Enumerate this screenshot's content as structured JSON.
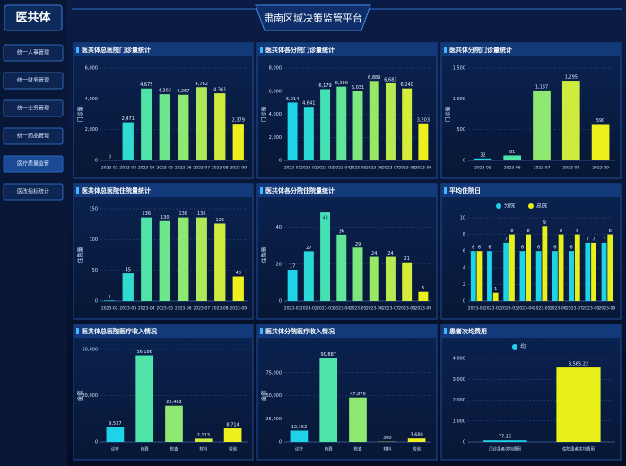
{
  "header": {
    "title": "肃南区域决策监管平台"
  },
  "sidebar": {
    "title": "医共体",
    "items": [
      "统一人事管理",
      "统一财务管理",
      "统一业务管理",
      "统一药品管理",
      "医疗质量监管",
      "医改指标统计"
    ],
    "active": 4
  },
  "chart_data": [
    {
      "type": "bar",
      "title": "医共体总医院门诊量统计",
      "ylabel": "门诊量",
      "categories": [
        "2023-02",
        "2023-03",
        "2023-04",
        "2023-05",
        "2023-06",
        "2023-07",
        "2023-08",
        "2023-09"
      ],
      "series": [
        {
          "colors": [
            "#1ed3e8",
            "#2fdcd0",
            "#4fe3a8",
            "#6ee68c",
            "#8ee872",
            "#aee95a",
            "#cfec3e",
            "#eef01e"
          ],
          "values": [
            0,
            2471,
            4675,
            4303,
            4267,
            4762,
            4361,
            2379
          ],
          "value_labels": [
            "0",
            "2,471",
            "4,675",
            "4,303",
            "4,267",
            "4,762",
            "4,361",
            "2,379"
          ]
        }
      ],
      "ylim": [
        0,
        6000
      ],
      "yticks": [
        0,
        {
          "value": 2000,
          "label": "2,000"
        },
        {
          "value": 4000,
          "label": "4,000"
        },
        {
          "value": 6000,
          "label": "6,000"
        }
      ]
    },
    {
      "type": "bar",
      "title": "医共体各分院门诊量统计",
      "ylabel": "门诊量",
      "categories": [
        "2023-01",
        "2023-02",
        "2023-03",
        "2023-04",
        "2023-05",
        "2023-06",
        "2023-07",
        "2023-08",
        "2023-09"
      ],
      "series": [
        {
          "colors": [
            "#1ed3e8",
            "#2bdad6",
            "#45e1b4",
            "#60e496",
            "#7ce77e",
            "#98e866",
            "#b6ea50",
            "#d4ed38",
            "#eef01e"
          ],
          "values": [
            5014,
            4641,
            6179,
            6396,
            6031,
            6889,
            6683,
            6240,
            3203
          ],
          "value_labels": [
            "5,014",
            "4,641",
            "6,179",
            "6,396",
            "6,031",
            "6,889",
            "6,683",
            "6,240",
            "3,203"
          ]
        }
      ],
      "ylim": [
        0,
        8000
      ],
      "yticks": [
        0,
        {
          "value": 2000,
          "label": "2,000"
        },
        {
          "value": 4000,
          "label": "4,000"
        },
        {
          "value": 6000,
          "label": "6,000"
        },
        {
          "value": 8000,
          "label": "8,000"
        }
      ]
    },
    {
      "type": "bar",
      "title": "医共体分院门诊量统计",
      "ylabel": "门诊量",
      "categories": [
        "2023-05",
        "2023-06",
        "2023-07",
        "2023-08",
        "2023-09"
      ],
      "series": [
        {
          "colors": [
            "#1ed3e8",
            "#4fe3a8",
            "#8ee872",
            "#cfec3e",
            "#eef01e"
          ],
          "values": [
            32,
            81,
            1137,
            1295,
            590
          ],
          "value_labels": [
            "32",
            "81",
            "1,137",
            "1,295",
            "590"
          ]
        }
      ],
      "ylim": [
        0,
        1500
      ],
      "yticks": [
        0,
        500,
        {
          "value": 1000,
          "label": "1,000"
        },
        {
          "value": 1500,
          "label": "1,500"
        }
      ]
    },
    {
      "type": "bar",
      "title": "医共体总医院住院量统计",
      "ylabel": "住院量",
      "categories": [
        "2023-02",
        "2023-03",
        "2023-04",
        "2023-05",
        "2023-06",
        "2023-07",
        "2023-08",
        "2023-09"
      ],
      "series": [
        {
          "colors": [
            "#1ed3e8",
            "#2fdcd0",
            "#4fe3a8",
            "#6ee68c",
            "#8ee872",
            "#aee95a",
            "#cfec3e",
            "#eef01e"
          ],
          "values": [
            1,
            45,
            136,
            130,
            136,
            136,
            126,
            40
          ]
        }
      ],
      "ylim": [
        0,
        150
      ],
      "yticks": [
        0,
        50,
        100,
        150
      ]
    },
    {
      "type": "bar",
      "title": "医共体各分院住院量统计",
      "ylabel": "住院量",
      "categories": [
        "2023-01",
        "2023-02",
        "2023-03",
        "2023-04",
        "2023-05",
        "2023-06",
        "2023-07",
        "2023-08",
        "2023-09"
      ],
      "series": [
        {
          "colors": [
            "#1ed3e8",
            "#2bdad6",
            "#45e1b4",
            "#60e496",
            "#7ce77e",
            "#98e866",
            "#b6ea50",
            "#d4ed38",
            "#eef01e"
          ],
          "values": [
            17,
            27,
            48,
            36,
            29,
            24,
            24,
            21,
            5
          ]
        }
      ],
      "ylim": [
        0,
        50
      ],
      "yticks": [
        0,
        20,
        40
      ]
    },
    {
      "type": "bar",
      "title": "平均住院日",
      "legend": "top",
      "categories": [
        "2023-01",
        "2023-02",
        "2023-03",
        "2023-04",
        "2023-05",
        "2023-06",
        "2023-07",
        "2023-08",
        "2023-09"
      ],
      "series": [
        {
          "name": "分院",
          "color": "#1ed3e8",
          "values": [
            6,
            6,
            7,
            6,
            6,
            6,
            6,
            7,
            7
          ]
        },
        {
          "name": "总院",
          "color": "#e8f01a",
          "values": [
            6,
            1,
            8,
            8,
            9,
            8,
            8,
            7,
            8
          ]
        }
      ],
      "ylim": [
        0,
        10
      ],
      "yticks": [
        0,
        2,
        4,
        6,
        8,
        10
      ]
    },
    {
      "type": "bar",
      "title": "医共体总医院医疗收入情况",
      "ylabel": "金额",
      "categories": [
        "诊疗",
        "药费",
        "检查",
        "材料",
        "检验"
      ],
      "series": [
        {
          "colors": [
            "#1ed3e8",
            "#4fe3a8",
            "#8ee872",
            "#cfec3e",
            "#eef01e"
          ],
          "values": [
            9537,
            56186,
            23482,
            2113,
            8714
          ],
          "value_labels": [
            "9,537",
            "56,186",
            "23,482",
            "2,113",
            "8,714"
          ]
        }
      ],
      "ylim": [
        0,
        60000
      ],
      "yticks": [
        0,
        {
          "value": 30000,
          "label": "30,000"
        },
        {
          "value": 60000,
          "label": "60,000"
        }
      ]
    },
    {
      "type": "bar",
      "title": "医共体分院医疗收入情况",
      "ylabel": "金额",
      "categories": [
        "诊疗",
        "药费",
        "检查",
        "材料",
        "检验"
      ],
      "series": [
        {
          "colors": [
            "#1ed3e8",
            "#4fe3a8",
            "#8ee872",
            "#cfec3e",
            "#eef01e"
          ],
          "values": [
            12162,
            90887,
            47876,
            300,
            3680
          ],
          "value_labels": [
            "12,162",
            "90,887",
            "47,876",
            "300",
            "3,680"
          ]
        }
      ],
      "ylim": [
        0,
        100000
      ],
      "yticks": [
        0,
        {
          "value": 25000,
          "label": "25,000"
        },
        {
          "value": 50000,
          "label": "50,000"
        },
        {
          "value": 75000,
          "label": "75,000"
        }
      ]
    },
    {
      "type": "bar",
      "title": "患者次均费用",
      "legend": "top",
      "categories": [
        "门诊患者次均费用",
        "住院患者次均费用"
      ],
      "series": [
        {
          "name": "均",
          "color": "#1ed3e8",
          "colors": [
            "#1ed3e8",
            "#e8f01a"
          ],
          "values": [
            77.16,
            3565.22
          ],
          "value_labels": [
            "77.16",
            "3,565.22"
          ]
        }
      ],
      "ylim": [
        0,
        4000
      ],
      "yticks": [
        0,
        {
          "value": 1000,
          "label": "1,000"
        },
        {
          "value": 2000,
          "label": "2,000"
        },
        {
          "value": 3000,
          "label": "3,000"
        },
        {
          "value": 4000,
          "label": "4,000"
        }
      ]
    }
  ]
}
